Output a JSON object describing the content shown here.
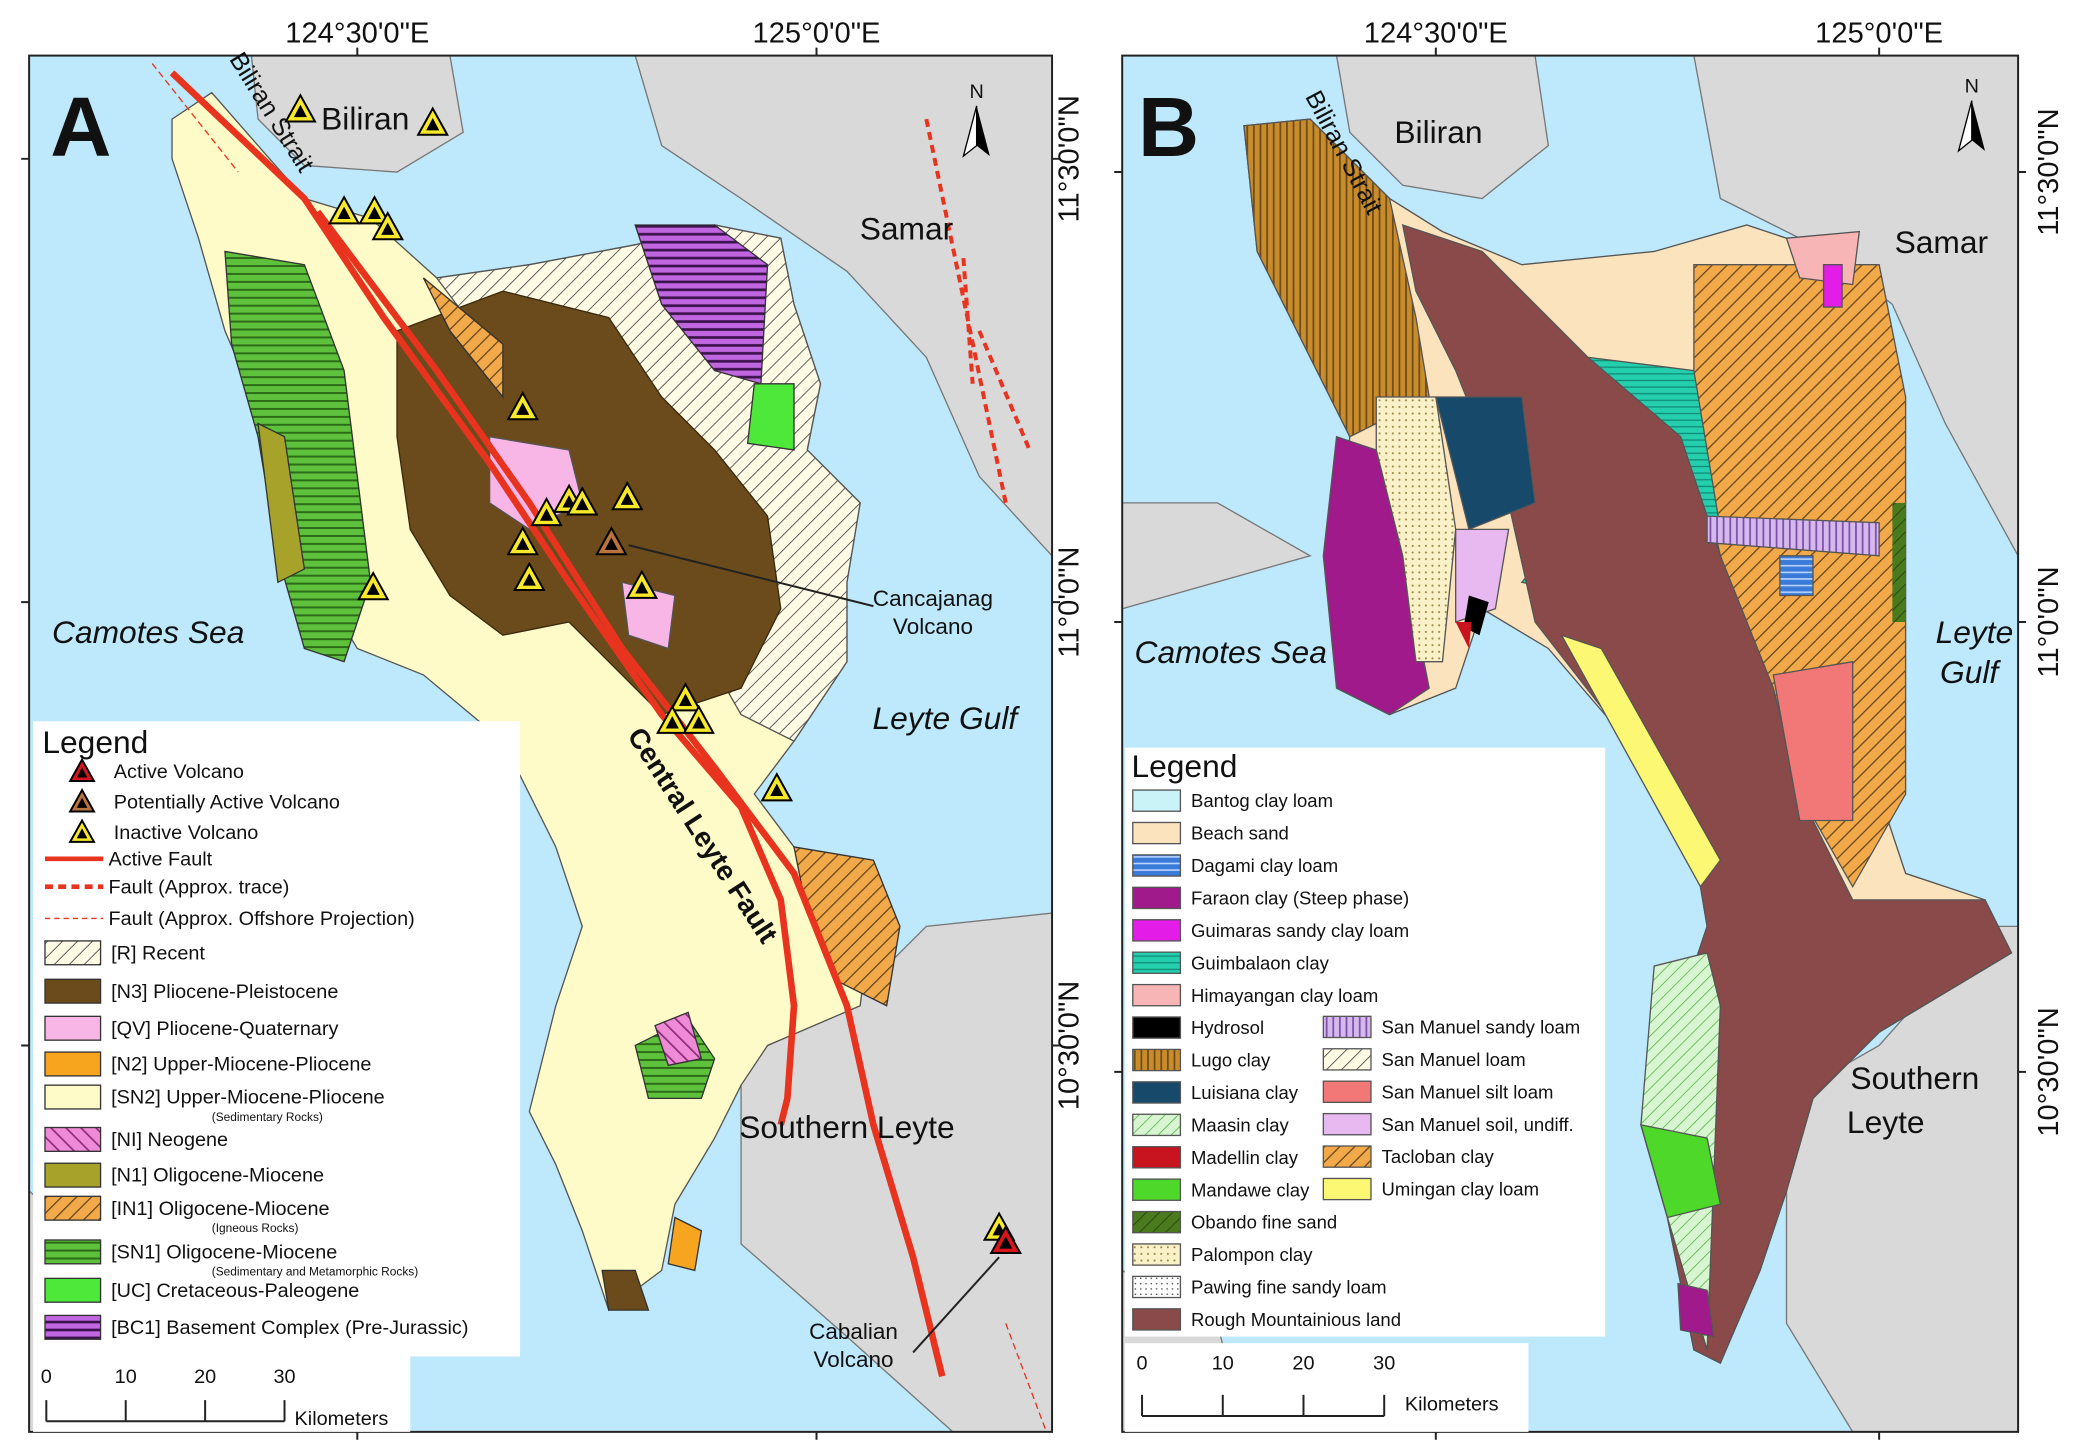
{
  "panels": [
    {
      "letter": "A",
      "north": "N",
      "longitudes": [
        "124°30'0\"E",
        "125°0'0\"E"
      ],
      "latitudes": [
        "11°30'0\"N",
        "11°0'0\"N",
        "10°30'0\"N"
      ],
      "places": [
        {
          "lines": [
            "Biliran"
          ]
        },
        {
          "lines": [
            "Biliran Strait"
          ]
        },
        {
          "lines": [
            "Samar"
          ]
        },
        {
          "lines": [
            "Camotes Sea"
          ]
        },
        {
          "lines": [
            "Leyte Gulf"
          ]
        },
        {
          "lines": [
            "Southern Leyte"
          ]
        },
        {
          "lines": [
            "Cancajanag",
            "Volcano"
          ]
        },
        {
          "lines": [
            "Cabalian",
            "Volcano"
          ]
        },
        {
          "lines": [
            "Central Leyte Fault"
          ]
        }
      ],
      "legend": {
        "title": "Legend",
        "items": [
          {
            "label": "Active Volcano"
          },
          {
            "label": "Potentially Active Volcano"
          },
          {
            "label": "Inactive Volcano"
          },
          {
            "label": "Active Fault"
          },
          {
            "label": "Fault (Approx. trace)"
          },
          {
            "label": "Fault (Approx. Offshore Projection)"
          },
          {
            "label": "[R] Recent"
          },
          {
            "label": "[N3] Pliocene-Pleistocene"
          },
          {
            "label": "[QV] Pliocene-Quaternary"
          },
          {
            "label": "[N2] Upper-Miocene-Pliocene"
          },
          {
            "label": "[SN2] Upper-Miocene-Pliocene",
            "note": "(Sedimentary Rocks)"
          },
          {
            "label": "[NI] Neogene"
          },
          {
            "label": "[N1] Oligocene-Miocene"
          },
          {
            "label": "[IN1] Oligocene-Miocene",
            "note": "(Igneous Rocks)"
          },
          {
            "label": "[SN1] Oligocene-Miocene",
            "note": "(Sedimentary and Metamorphic Rocks)"
          },
          {
            "label": "[UC] Cretaceous-Paleogene"
          },
          {
            "label": "[BC1] Basement Complex (Pre-Jurassic)"
          }
        ]
      },
      "scale": {
        "ticks": [
          0,
          10,
          20,
          30
        ],
        "unit": "Kilometers"
      }
    },
    {
      "letter": "B",
      "north": "N",
      "longitudes": [
        "124°30'0\"E",
        "125°0'0\"E"
      ],
      "latitudes": [
        "11°30'0\"N",
        "11°0'0\"N",
        "10°30'0\"N"
      ],
      "places": [
        {
          "lines": [
            "Biliran"
          ]
        },
        {
          "lines": [
            "Biliran Strait"
          ]
        },
        {
          "lines": [
            "Samar"
          ]
        },
        {
          "lines": [
            "Camotes Sea"
          ]
        },
        {
          "lines": [
            "Leyte",
            "Gulf"
          ]
        },
        {
          "lines": [
            "Southern",
            "Leyte"
          ]
        }
      ],
      "legend": {
        "title": "Legend",
        "columns": [
          [
            "Bantog clay loam",
            "Beach sand",
            "Dagami clay loam",
            "Faraon clay (Steep phase)",
            "Guimaras sandy clay loam",
            "Guimbalaon clay",
            "Himayangan clay loam",
            "Hydrosol",
            "Lugo clay",
            "Luisiana clay",
            "Maasin clay",
            "Madellin clay",
            "Mandawe clay",
            "Obando fine sand",
            "Palompon clay",
            "Pawing fine sandy loam",
            "Rough Mountainious land"
          ],
          [
            "San Manuel sandy loam",
            "San Manuel loam",
            "San Manuel silt loam",
            "San Manuel soil, undiff.",
            "Tacloban clay",
            "Umingan clay loam"
          ]
        ]
      },
      "scale": {
        "ticks": [
          0,
          10,
          20,
          30
        ],
        "unit": "Kilometers"
      }
    }
  ]
}
